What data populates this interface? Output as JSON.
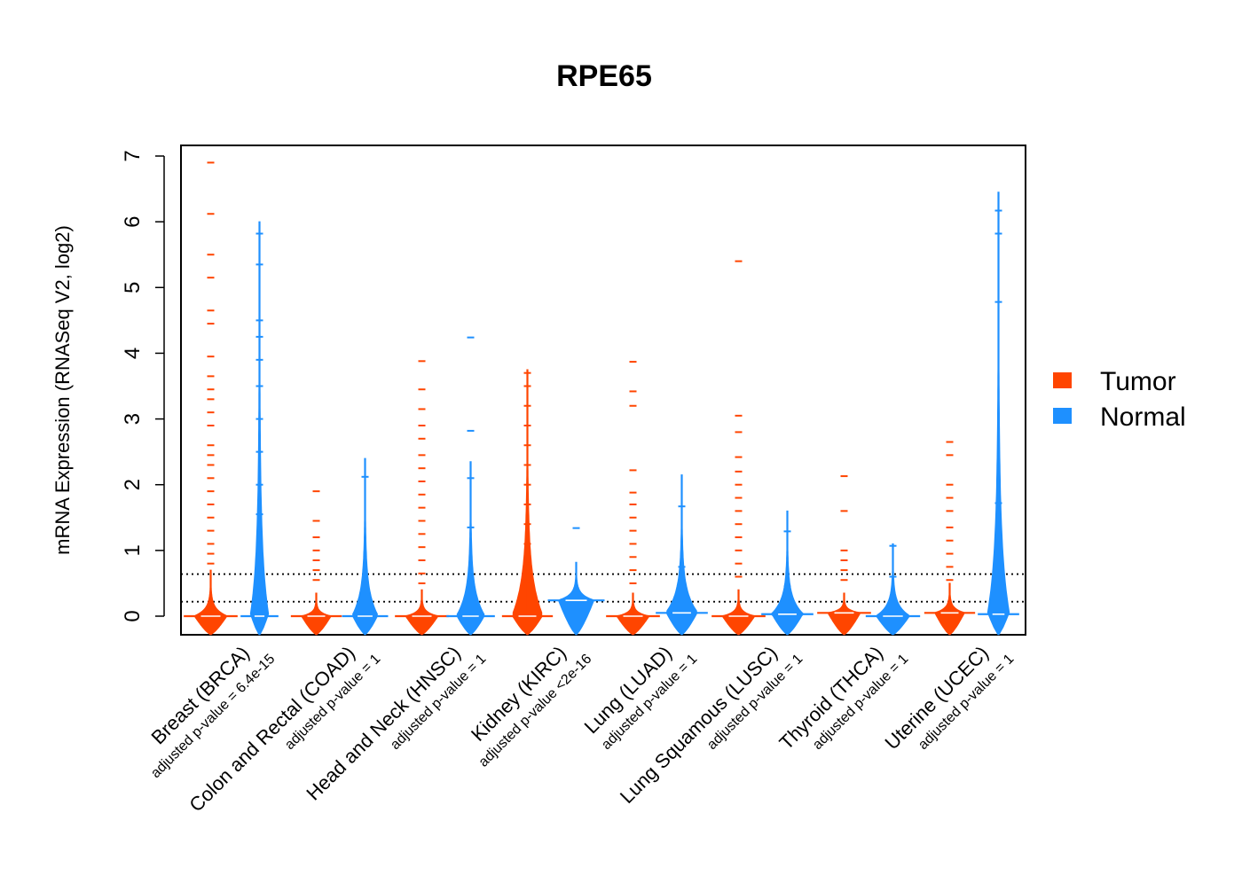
{
  "chart_data": {
    "type": "beanplot",
    "title": "RPE65",
    "xlabel": "",
    "ylabel": "mRNA Expression (RNASeq V2, log2)",
    "ylim": [
      -0.28,
      7.15
    ],
    "yticks": [
      0,
      1,
      2,
      3,
      4,
      5,
      6,
      7
    ],
    "reference_lines": [
      0.22,
      0.64
    ],
    "legend": {
      "position": "right",
      "entries": [
        {
          "label": "Tumor",
          "color": "#ff4500"
        },
        {
          "label": "Normal",
          "color": "#1e90ff"
        }
      ]
    },
    "categories": [
      {
        "name": "Breast (BRCA)",
        "pvalue": "adjusted p-value = 6.4e-15",
        "tumor": {
          "median": 0.0,
          "max": 0.7,
          "width": 0.55,
          "outliers": [
            6.9,
            6.12,
            5.5,
            5.15,
            4.65,
            4.45,
            3.95,
            3.65,
            3.45,
            3.3,
            3.1,
            2.9,
            2.6,
            2.45,
            2.3,
            2.1,
            1.9,
            1.7,
            1.5,
            1.3,
            1.1,
            0.95,
            0.8
          ]
        },
        "normal": {
          "median": 0.0,
          "max": 6.0,
          "width": 0.28,
          "outliers": [
            5.82,
            5.35,
            4.5,
            4.25,
            3.9,
            3.5,
            3.0,
            2.5,
            2.0,
            1.55,
            1.0
          ]
        }
      },
      {
        "name": "Colon and Rectal (COAD)",
        "pvalue": "adjusted p-value = 1",
        "tumor": {
          "median": 0.0,
          "max": 0.35,
          "width": 0.5,
          "outliers": [
            1.9,
            1.45,
            1.2,
            1.0,
            0.85,
            0.7,
            0.55
          ]
        },
        "normal": {
          "median": 0.0,
          "max": 2.4,
          "width": 0.42,
          "outliers": [
            2.12
          ]
        }
      },
      {
        "name": "Head and Neck (HNSC)",
        "pvalue": "adjusted p-value = 1",
        "tumor": {
          "median": 0.0,
          "max": 0.4,
          "width": 0.55,
          "outliers": [
            3.88,
            3.45,
            3.15,
            2.9,
            2.7,
            2.45,
            2.25,
            2.05,
            1.85,
            1.65,
            1.45,
            1.25,
            1.05,
            0.85,
            0.65,
            0.5
          ]
        },
        "normal": {
          "median": 0.0,
          "max": 2.35,
          "width": 0.46,
          "outliers": [
            4.24,
            2.82,
            2.1,
            1.35
          ]
        }
      },
      {
        "name": "Kidney (KIRC)",
        "pvalue": "adjusted p-value <2e-16",
        "tumor": {
          "median": 0.0,
          "max": 3.75,
          "width": 0.5,
          "outliers": [
            3.7,
            3.5,
            3.2,
            2.9,
            2.6,
            2.3,
            2.0,
            1.7,
            1.4,
            1.1,
            0.8,
            0.5
          ]
        },
        "normal": {
          "median": 0.24,
          "max": 0.82,
          "width": 0.6,
          "outliers": [
            1.34
          ]
        }
      },
      {
        "name": "Lung (LUAD)",
        "pvalue": "adjusted p-value = 1",
        "tumor": {
          "median": 0.0,
          "max": 0.35,
          "width": 0.55,
          "outliers": [
            3.87,
            3.42,
            3.2,
            2.22,
            1.88,
            1.7,
            1.5,
            1.3,
            1.1,
            0.9,
            0.7,
            0.5
          ]
        },
        "normal": {
          "median": 0.05,
          "max": 2.15,
          "width": 0.52,
          "outliers": [
            1.67,
            0.75
          ]
        }
      },
      {
        "name": "Lung Squamous (LUSC)",
        "pvalue": "adjusted p-value = 1",
        "tumor": {
          "median": 0.0,
          "max": 0.4,
          "width": 0.55,
          "outliers": [
            5.4,
            3.05,
            2.8,
            2.42,
            2.2,
            2.0,
            1.8,
            1.6,
            1.4,
            1.2,
            1.0,
            0.8,
            0.6
          ]
        },
        "normal": {
          "median": 0.03,
          "max": 1.6,
          "width": 0.52,
          "outliers": [
            1.29,
            0.45
          ]
        }
      },
      {
        "name": "Thyroid (THCA)",
        "pvalue": "adjusted p-value = 1",
        "tumor": {
          "median": 0.05,
          "max": 0.35,
          "width": 0.55,
          "outliers": [
            2.13,
            1.6,
            1.0,
            0.85,
            0.7,
            0.55
          ]
        },
        "normal": {
          "median": 0.0,
          "max": 1.1,
          "width": 0.56,
          "outliers": [
            1.07,
            0.6
          ]
        }
      },
      {
        "name": "Uterine (UCEC)",
        "pvalue": "adjusted p-value = 1",
        "tumor": {
          "median": 0.05,
          "max": 0.5,
          "width": 0.5,
          "outliers": [
            2.65,
            2.45,
            2.0,
            1.8,
            1.6,
            1.35,
            1.15,
            0.95,
            0.75,
            0.55
          ]
        },
        "normal": {
          "median": 0.03,
          "max": 6.45,
          "width": 0.34,
          "outliers": [
            6.17,
            5.82,
            4.78,
            1.72,
            1.15
          ]
        }
      }
    ]
  }
}
